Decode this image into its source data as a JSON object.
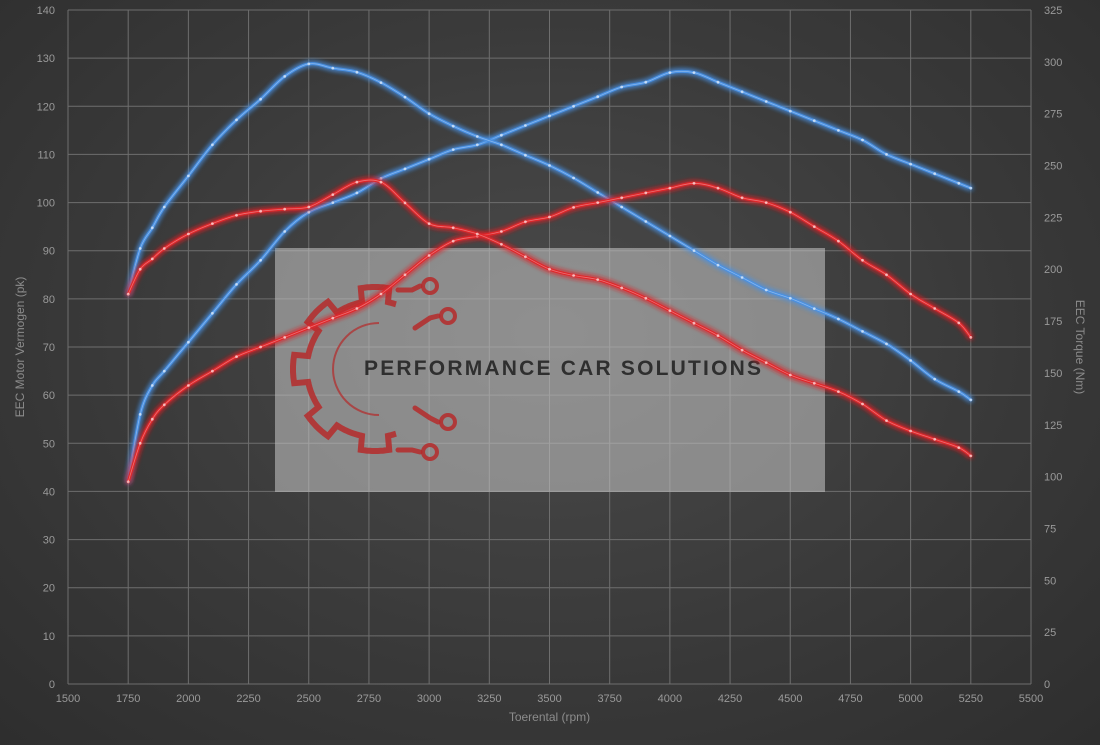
{
  "chart_data": {
    "type": "line",
    "title": "",
    "xlabel": "Toerental (rpm)",
    "ylabel_left": "EEC Motor Vermogen (pk)",
    "ylabel_right": "EEC Torque (Nm)",
    "xlim": [
      1500,
      5500
    ],
    "xticks": [
      1500,
      1750,
      2000,
      2250,
      2500,
      2750,
      3000,
      3250,
      3500,
      3750,
      4000,
      4250,
      4500,
      4750,
      5000,
      5250,
      5500
    ],
    "ylim_left": [
      0,
      140
    ],
    "yticks_left": [
      0,
      10,
      20,
      30,
      40,
      50,
      60,
      70,
      80,
      90,
      100,
      110,
      120,
      130,
      140
    ],
    "ylim_right": [
      0,
      325
    ],
    "yticks_right": [
      0,
      25,
      50,
      75,
      100,
      125,
      150,
      175,
      200,
      225,
      250,
      275,
      300,
      325
    ],
    "grid": true,
    "legend": "none",
    "series": [
      {
        "key": "power_tuned",
        "axis": "left",
        "color": "#4a90e2",
        "points": [
          [
            1750,
            42
          ],
          [
            1800,
            56
          ],
          [
            1850,
            62
          ],
          [
            1900,
            65
          ],
          [
            2000,
            71
          ],
          [
            2100,
            77
          ],
          [
            2200,
            83
          ],
          [
            2300,
            88
          ],
          [
            2400,
            94
          ],
          [
            2500,
            98
          ],
          [
            2600,
            100
          ],
          [
            2700,
            102
          ],
          [
            2800,
            105
          ],
          [
            2900,
            107
          ],
          [
            3000,
            109
          ],
          [
            3100,
            111
          ],
          [
            3200,
            112
          ],
          [
            3300,
            114
          ],
          [
            3400,
            116
          ],
          [
            3500,
            118
          ],
          [
            3600,
            120
          ],
          [
            3700,
            122
          ],
          [
            3800,
            124
          ],
          [
            3900,
            125
          ],
          [
            4000,
            127
          ],
          [
            4100,
            127
          ],
          [
            4200,
            125
          ],
          [
            4300,
            123
          ],
          [
            4400,
            121
          ],
          [
            4500,
            119
          ],
          [
            4600,
            117
          ],
          [
            4700,
            115
          ],
          [
            4800,
            113
          ],
          [
            4900,
            110
          ],
          [
            5000,
            108
          ],
          [
            5100,
            106
          ],
          [
            5200,
            104
          ],
          [
            5250,
            103
          ]
        ]
      },
      {
        "key": "torque_tuned",
        "axis": "right",
        "color": "#4a90e2",
        "points": [
          [
            1750,
            188
          ],
          [
            1800,
            210
          ],
          [
            1850,
            220
          ],
          [
            1900,
            230
          ],
          [
            2000,
            245
          ],
          [
            2100,
            260
          ],
          [
            2200,
            272
          ],
          [
            2300,
            282
          ],
          [
            2400,
            293
          ],
          [
            2500,
            299
          ],
          [
            2600,
            297
          ],
          [
            2700,
            295
          ],
          [
            2800,
            290
          ],
          [
            2900,
            283
          ],
          [
            3000,
            275
          ],
          [
            3100,
            269
          ],
          [
            3200,
            264
          ],
          [
            3300,
            260
          ],
          [
            3400,
            255
          ],
          [
            3500,
            250
          ],
          [
            3600,
            244
          ],
          [
            3700,
            237
          ],
          [
            3800,
            230
          ],
          [
            3900,
            223
          ],
          [
            4000,
            216
          ],
          [
            4100,
            209
          ],
          [
            4200,
            202
          ],
          [
            4300,
            196
          ],
          [
            4400,
            190
          ],
          [
            4500,
            186
          ],
          [
            4600,
            181
          ],
          [
            4700,
            176
          ],
          [
            4800,
            170
          ],
          [
            4900,
            164
          ],
          [
            5000,
            156
          ],
          [
            5100,
            147
          ],
          [
            5200,
            141
          ],
          [
            5250,
            137
          ]
        ]
      },
      {
        "key": "power_stock",
        "axis": "left",
        "color": "#e0252b",
        "points": [
          [
            1750,
            42
          ],
          [
            1800,
            50
          ],
          [
            1850,
            55
          ],
          [
            1900,
            58
          ],
          [
            2000,
            62
          ],
          [
            2100,
            65
          ],
          [
            2200,
            68
          ],
          [
            2300,
            70
          ],
          [
            2400,
            72
          ],
          [
            2500,
            74
          ],
          [
            2600,
            76
          ],
          [
            2700,
            78
          ],
          [
            2800,
            81
          ],
          [
            2900,
            85
          ],
          [
            3000,
            89
          ],
          [
            3100,
            92
          ],
          [
            3200,
            93
          ],
          [
            3300,
            94
          ],
          [
            3400,
            96
          ],
          [
            3500,
            97
          ],
          [
            3600,
            99
          ],
          [
            3700,
            100
          ],
          [
            3800,
            101
          ],
          [
            3900,
            102
          ],
          [
            4000,
            103
          ],
          [
            4100,
            104
          ],
          [
            4200,
            103
          ],
          [
            4300,
            101
          ],
          [
            4400,
            100
          ],
          [
            4500,
            98
          ],
          [
            4600,
            95
          ],
          [
            4700,
            92
          ],
          [
            4800,
            88
          ],
          [
            4900,
            85
          ],
          [
            5000,
            81
          ],
          [
            5100,
            78
          ],
          [
            5200,
            75
          ],
          [
            5250,
            72
          ]
        ]
      },
      {
        "key": "torque_stock",
        "axis": "right",
        "color": "#e0252b",
        "points": [
          [
            1750,
            188
          ],
          [
            1800,
            200
          ],
          [
            1850,
            205
          ],
          [
            1900,
            210
          ],
          [
            2000,
            217
          ],
          [
            2100,
            222
          ],
          [
            2200,
            226
          ],
          [
            2300,
            228
          ],
          [
            2400,
            229
          ],
          [
            2500,
            230
          ],
          [
            2600,
            236
          ],
          [
            2700,
            242
          ],
          [
            2800,
            242
          ],
          [
            2900,
            232
          ],
          [
            3000,
            222
          ],
          [
            3100,
            220
          ],
          [
            3200,
            217
          ],
          [
            3300,
            212
          ],
          [
            3400,
            206
          ],
          [
            3500,
            200
          ],
          [
            3600,
            197
          ],
          [
            3700,
            195
          ],
          [
            3800,
            191
          ],
          [
            3900,
            186
          ],
          [
            4000,
            180
          ],
          [
            4100,
            174
          ],
          [
            4200,
            168
          ],
          [
            4300,
            161
          ],
          [
            4400,
            155
          ],
          [
            4500,
            149
          ],
          [
            4600,
            145
          ],
          [
            4700,
            141
          ],
          [
            4800,
            135
          ],
          [
            4900,
            127
          ],
          [
            5000,
            122
          ],
          [
            5100,
            118
          ],
          [
            5200,
            114
          ],
          [
            5250,
            110
          ]
        ]
      }
    ]
  },
  "watermark": {
    "text": "PERFORMANCE CAR SOLUTIONS",
    "logo_icon": "gear-circuit-logo-icon",
    "logo_color": "#b52a2a"
  }
}
